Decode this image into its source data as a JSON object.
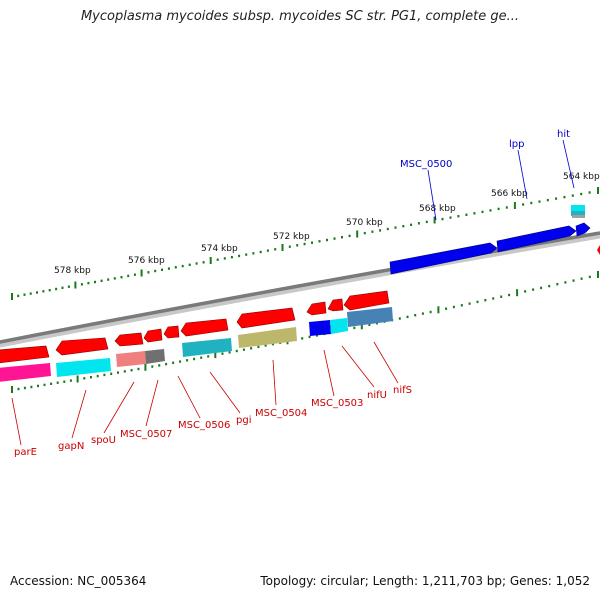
{
  "title": "Mycoplasma mycoides subsp. mycoides SC str. PG1, complete ge...",
  "footer": {
    "accession": "Accession: NC_005364",
    "info": "Topology: circular; Length: 1,211,703 bp; Genes: 1,052"
  },
  "colors": {
    "backbone": "#8a8a8a",
    "tick": "#1a7a1a",
    "forward_label": "#0000cc",
    "reverse_label": "#cc0000",
    "gene_red": "#ff0000",
    "gene_blue": "#0000ee",
    "cog_cyan": "#00e5ee",
    "cog_magenta": "#ff1493",
    "cog_salmon": "#f08080",
    "cog_gray": "#707070",
    "cog_teal": "#20b2c0",
    "cog_khaki": "#bdb76b",
    "cog_steel": "#4682b4"
  },
  "scale_labels": [
    "578 kbp",
    "576 kbp",
    "574 kbp",
    "572 kbp",
    "570 kbp",
    "568 kbp",
    "566 kbp",
    "564 kbp"
  ],
  "forward_labels": [
    "MSC_0500",
    "lpp",
    "hit"
  ],
  "reverse_labels": [
    "parE",
    "gapN",
    "spoU",
    "MSC_0507",
    "MSC_0506",
    "pgi",
    "MSC_0504",
    "MSC_0503",
    "nifU",
    "nifS"
  ]
}
